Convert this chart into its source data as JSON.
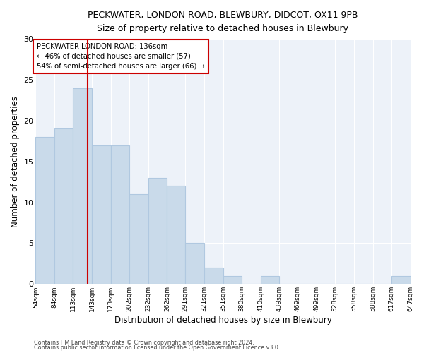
{
  "title": "PECKWATER, LONDON ROAD, BLEWBURY, DIDCOT, OX11 9PB",
  "subtitle": "Size of property relative to detached houses in Blewbury",
  "xlabel": "Distribution of detached houses by size in Blewbury",
  "ylabel": "Number of detached properties",
  "bar_color": "#c9daea",
  "bar_edge_color": "#b0c8e0",
  "plot_bg_color": "#edf2f9",
  "fig_bg_color": "#ffffff",
  "grid_color": "#ffffff",
  "bins": [
    54,
    84,
    113,
    143,
    173,
    202,
    232,
    262,
    291,
    321,
    351,
    380,
    410,
    439,
    469,
    499,
    528,
    558,
    588,
    617,
    647
  ],
  "counts": [
    18,
    19,
    24,
    17,
    17,
    11,
    13,
    12,
    5,
    2,
    1,
    0,
    1,
    0,
    0,
    0,
    0,
    0,
    0,
    1
  ],
  "tick_labels": [
    "54sqm",
    "84sqm",
    "113sqm",
    "143sqm",
    "173sqm",
    "202sqm",
    "232sqm",
    "262sqm",
    "291sqm",
    "321sqm",
    "351sqm",
    "380sqm",
    "410sqm",
    "439sqm",
    "469sqm",
    "499sqm",
    "528sqm",
    "558sqm",
    "588sqm",
    "617sqm",
    "647sqm"
  ],
  "vline_x": 136,
  "vline_color": "#cc0000",
  "annotation_title": "PECKWATER LONDON ROAD: 136sqm",
  "annotation_line1": "← 46% of detached houses are smaller (57)",
  "annotation_line2": "54% of semi-detached houses are larger (66) →",
  "annotation_box_color": "#ffffff",
  "annotation_box_edge": "#cc0000",
  "footer1": "Contains HM Land Registry data © Crown copyright and database right 2024.",
  "footer2": "Contains public sector information licensed under the Open Government Licence v3.0.",
  "ylim": [
    0,
    30
  ],
  "yticks": [
    0,
    5,
    10,
    15,
    20,
    25,
    30
  ]
}
